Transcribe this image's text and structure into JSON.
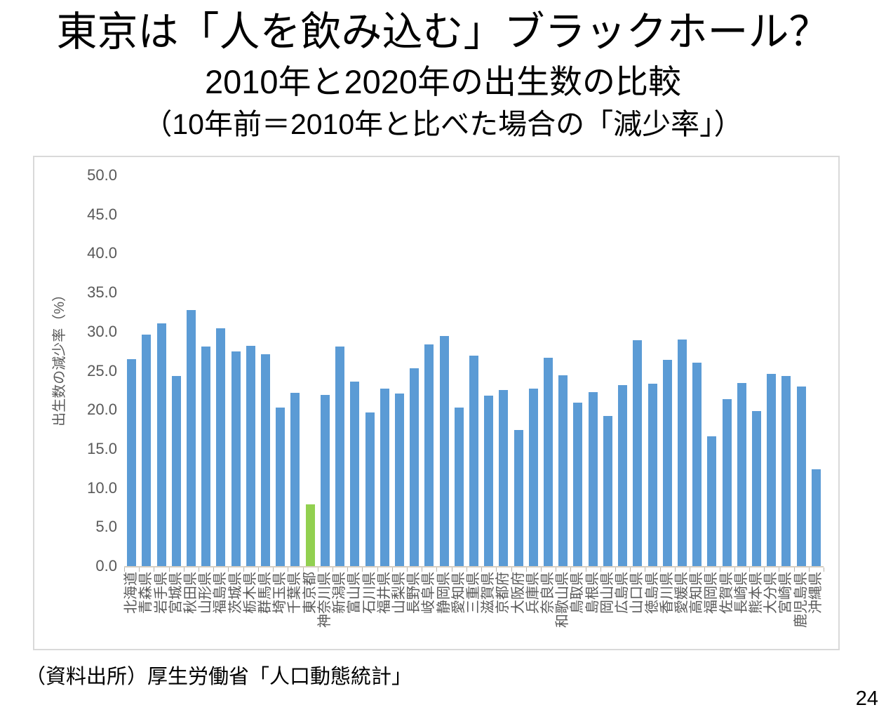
{
  "slide": {
    "title_line1": "東京は「人を飲み込む」ブラックホール？",
    "title_line2": "2010年と2020年の出生数の比較",
    "title_line3": "（10年前＝2010年と比べた場合の「減少率」）",
    "source_note": "（資料出所）厚生労働省「人口動態統計」",
    "page_number": "24"
  },
  "chart_data": {
    "type": "bar",
    "title": "",
    "xlabel": "",
    "ylabel": "出生数の減少率（%）",
    "ylim": [
      0,
      50
    ],
    "ytick_interval": 5,
    "ytick_labels": [
      "0.0",
      "5.0",
      "10.0",
      "15.0",
      "20.0",
      "25.0",
      "30.0",
      "35.0",
      "40.0",
      "45.0",
      "50.0"
    ],
    "grid": false,
    "legend": "none",
    "bar_color": "#5B9BD5",
    "highlight_color": "#92D050",
    "highlight_index": 12,
    "highlighted_category": "東京都",
    "categories": [
      "北海道",
      "青森県",
      "岩手県",
      "宮城県",
      "秋田県",
      "山形県",
      "福島県",
      "茨城県",
      "栃木県",
      "群馬県",
      "埼玉県",
      "千葉県",
      "東京都",
      "神奈川県",
      "新潟県",
      "富山県",
      "石川県",
      "福井県",
      "山梨県",
      "長野県",
      "岐阜県",
      "静岡県",
      "愛知県",
      "三重県",
      "滋賀県",
      "京都府",
      "大阪府",
      "兵庫県",
      "奈良県",
      "和歌山県",
      "鳥取県",
      "島根県",
      "岡山県",
      "広島県",
      "山口県",
      "徳島県",
      "香川県",
      "愛媛県",
      "高知県",
      "福岡県",
      "佐賀県",
      "長崎県",
      "熊本県",
      "大分県",
      "宮崎県",
      "鹿児島県",
      "沖縄県"
    ],
    "values": [
      26.5,
      29.6,
      31.1,
      24.3,
      32.8,
      28.1,
      30.4,
      27.5,
      28.2,
      27.1,
      20.3,
      22.2,
      7.9,
      21.9,
      28.1,
      23.6,
      19.7,
      22.7,
      22.1,
      25.3,
      28.4,
      29.4,
      20.3,
      26.9,
      21.8,
      22.5,
      17.4,
      22.7,
      26.7,
      24.4,
      20.9,
      22.3,
      19.2,
      23.2,
      28.9,
      23.3,
      26.4,
      29.0,
      26.0,
      16.6,
      21.4,
      23.4,
      19.8,
      24.6,
      24.3,
      23.0,
      12.4
    ]
  }
}
